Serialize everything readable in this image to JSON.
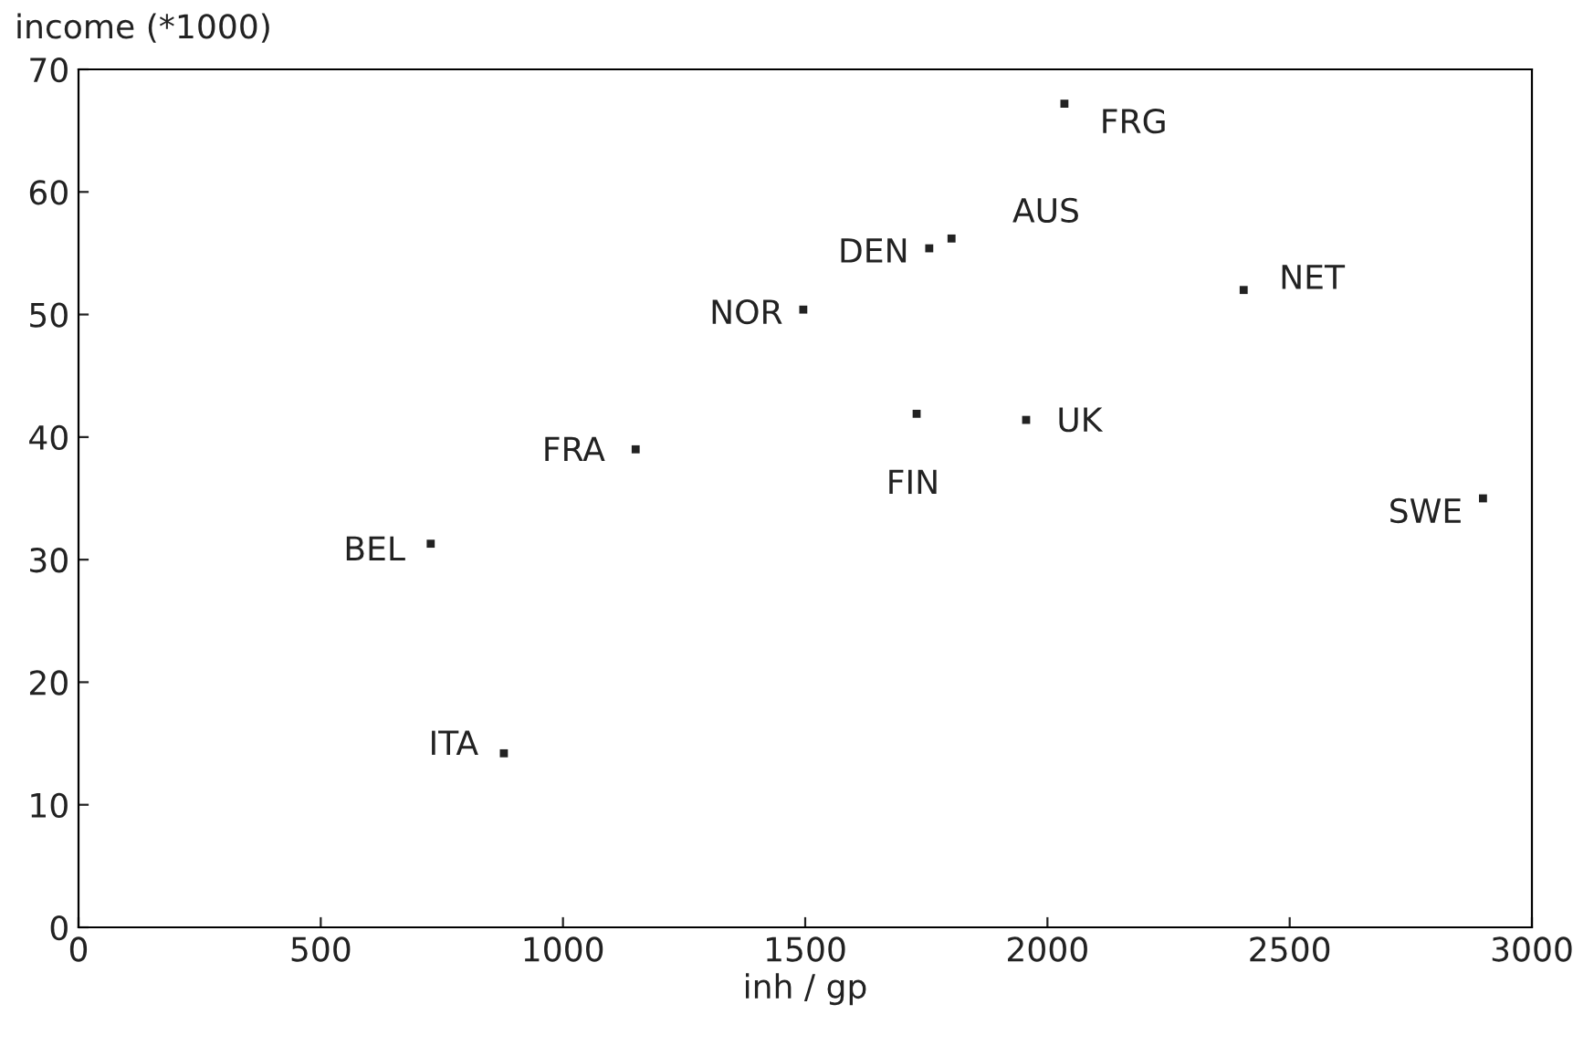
{
  "chart_data": {
    "type": "scatter",
    "xlabel": "inh / gp",
    "ylabel": "income (*1000)",
    "x": [
      2035,
      1802,
      1756,
      1496,
      2405,
      1730,
      1956,
      1150,
      2899,
      727,
      878
    ],
    "values": [
      67.2,
      56.2,
      55.4,
      50.4,
      52.0,
      41.9,
      41.4,
      39.0,
      35.0,
      31.3,
      14.2
    ],
    "color": "#222222",
    "marker": "square",
    "xlim": [
      0,
      3000
    ],
    "xticks": [
      0,
      500,
      1000,
      1500,
      2000,
      2500,
      3000
    ],
    "ylim": [
      0,
      70
    ],
    "yticks": [
      0,
      10,
      20,
      30,
      40,
      50,
      60,
      70
    ],
    "grid": false,
    "legend": false,
    "annotations": [
      {
        "text": "FRG",
        "x": 2035,
        "y": 67.2
      },
      {
        "text": "AUS",
        "x": 1802,
        "y": 56.2
      },
      {
        "text": "DEN",
        "x": 1756,
        "y": 55.4
      },
      {
        "text": "NOR",
        "x": 1496,
        "y": 50.4
      },
      {
        "text": "NET",
        "x": 2405,
        "y": 52.0
      },
      {
        "text": "FIN",
        "x": 1730,
        "y": 41.9
      },
      {
        "text": "UK",
        "x": 1956,
        "y": 41.4
      },
      {
        "text": "FRA",
        "x": 1150,
        "y": 39.0
      },
      {
        "text": "SWE",
        "x": 2899,
        "y": 35.0
      },
      {
        "text": "BEL",
        "x": 727,
        "y": 31.3
      },
      {
        "text": "ITA",
        "x": 878,
        "y": 14.2
      }
    ]
  }
}
